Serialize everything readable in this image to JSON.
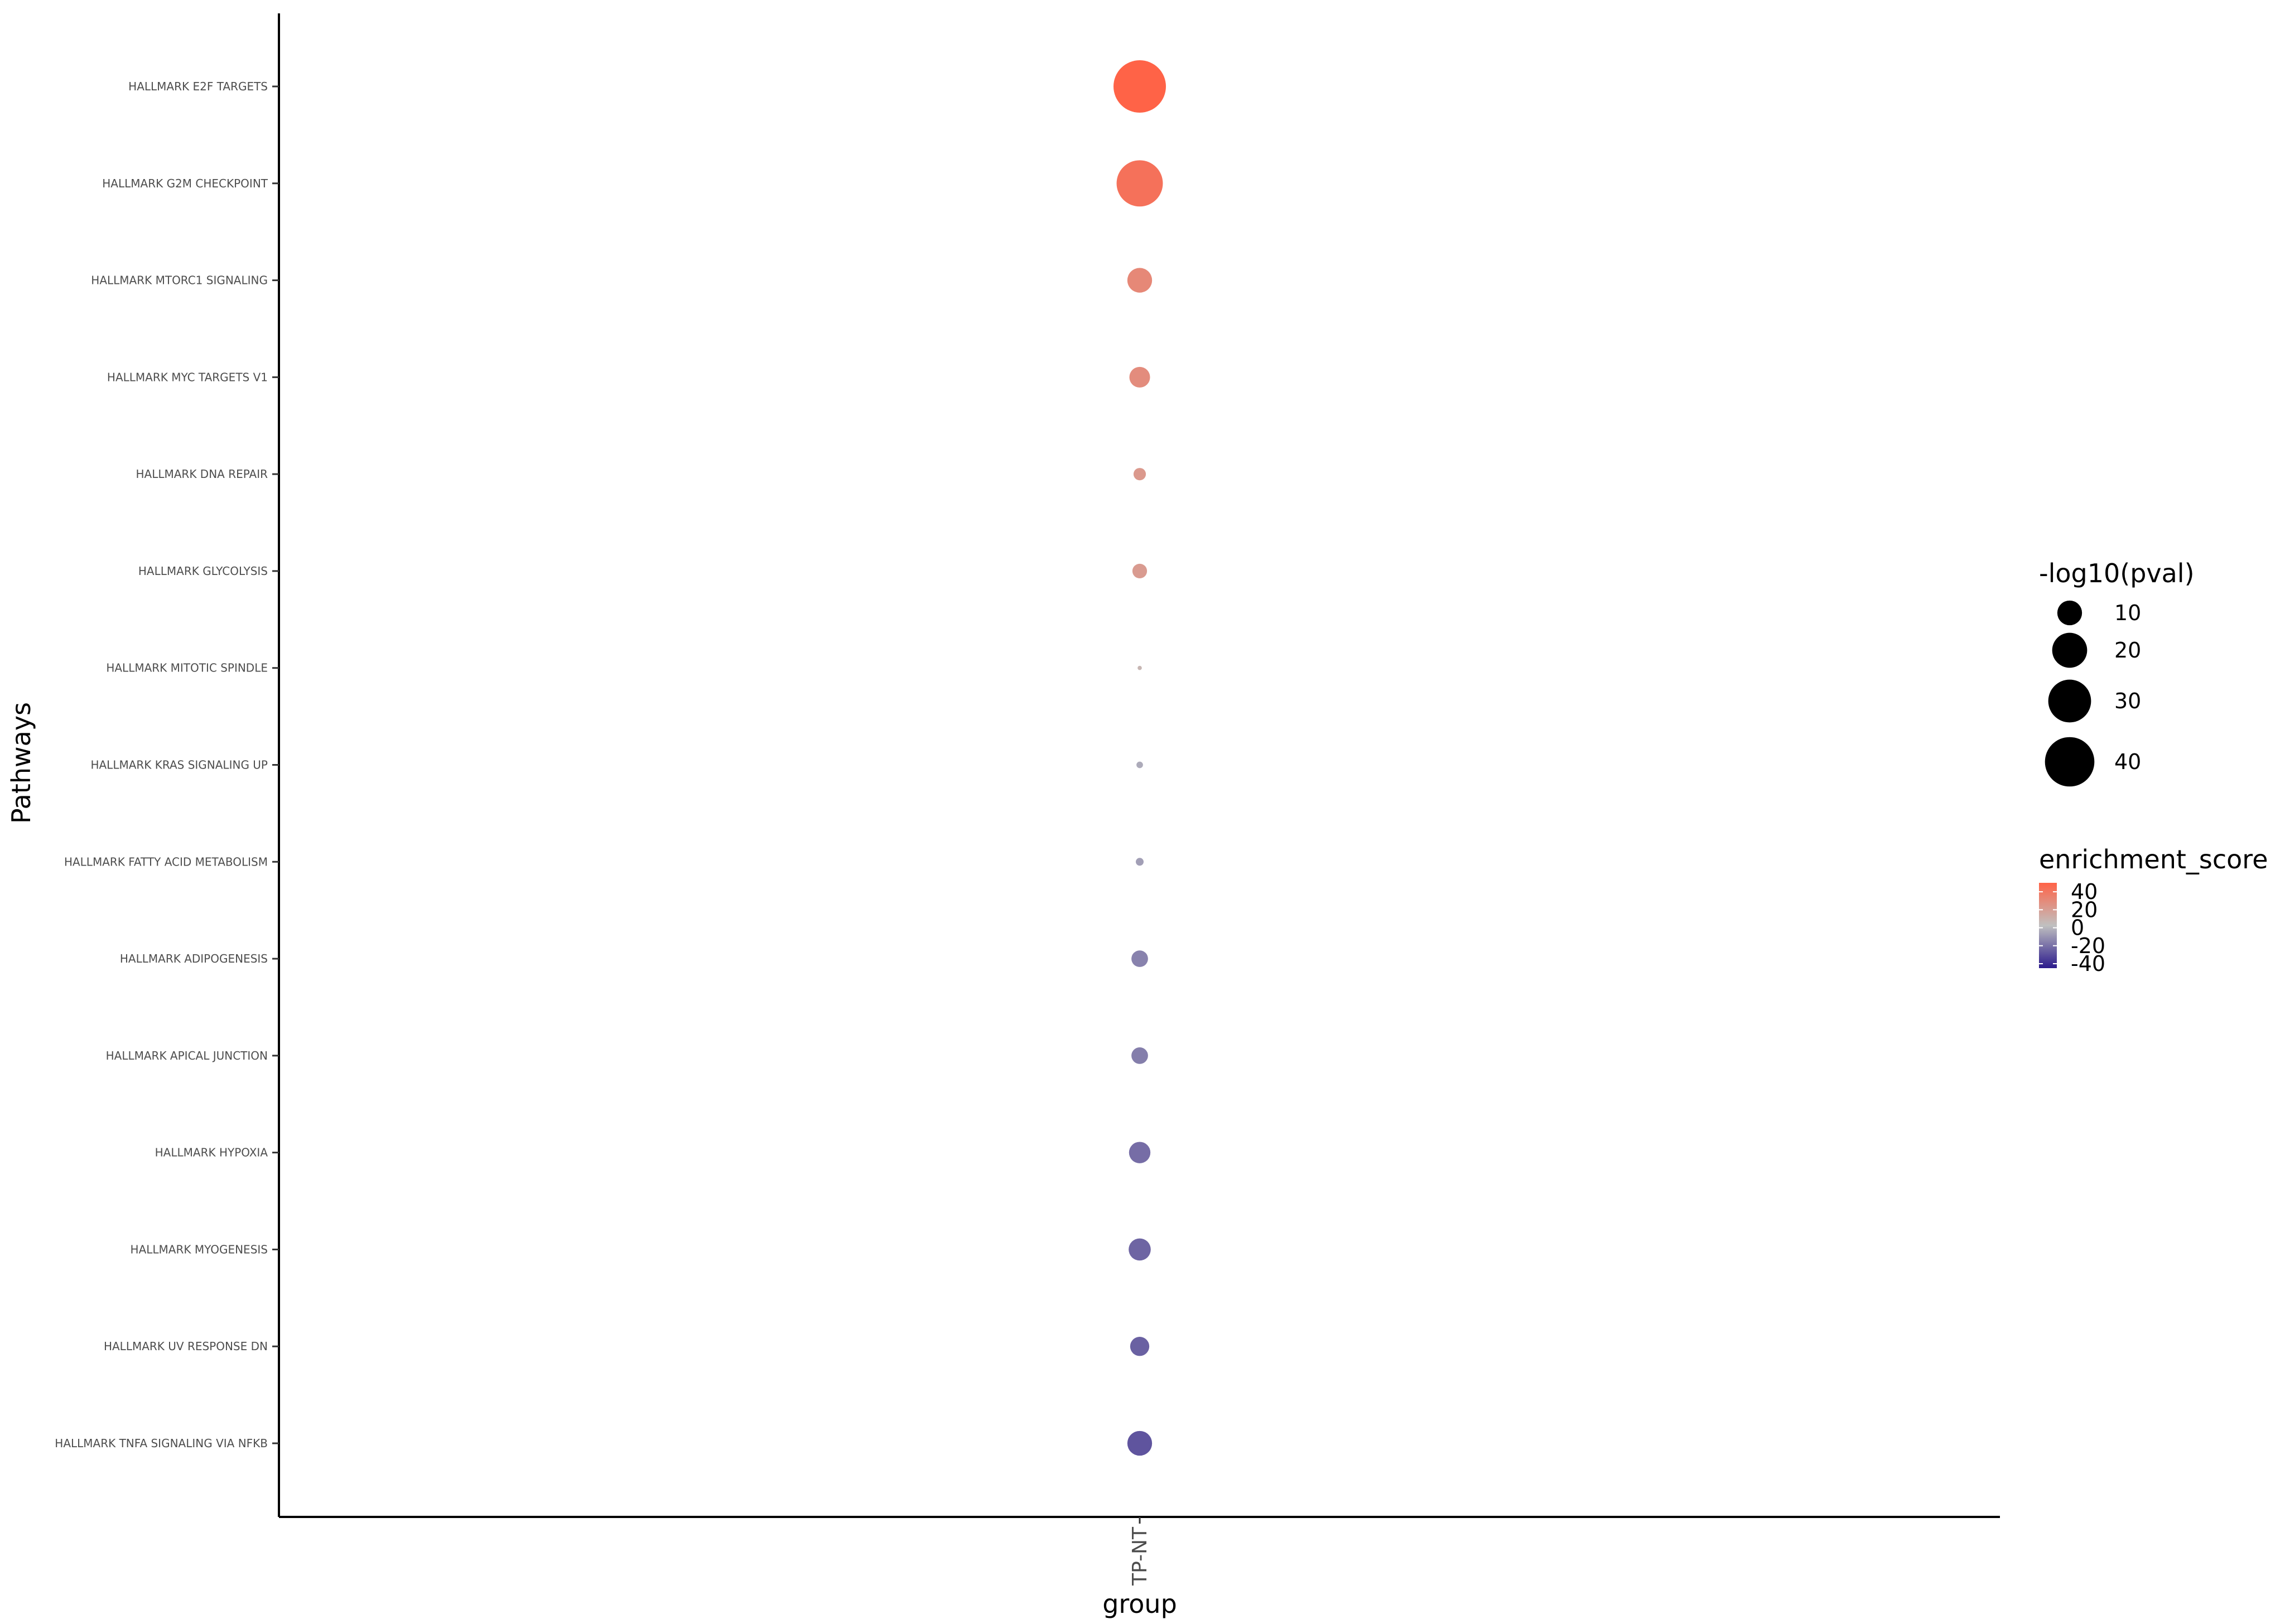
{
  "chart_data": {
    "type": "scatter",
    "title": "",
    "xlabel": "group",
    "ylabel": "Pathways",
    "x_categories": [
      "TP-NT"
    ],
    "y_categories": [
      "HALLMARK E2F TARGETS",
      "HALLMARK G2M CHECKPOINT",
      "HALLMARK MTORC1 SIGNALING",
      "HALLMARK MYC TARGETS V1",
      "HALLMARK DNA REPAIR",
      "HALLMARK GLYCOLYSIS",
      "HALLMARK MITOTIC SPINDLE",
      "HALLMARK KRAS SIGNALING UP",
      "HALLMARK FATTY ACID METABOLISM",
      "HALLMARK ADIPOGENESIS",
      "HALLMARK APICAL JUNCTION",
      "HALLMARK HYPOXIA",
      "HALLMARK MYOGENESIS",
      "HALLMARK UV RESPONSE DN",
      "HALLMARK TNFA SIGNALING VIA NFKB"
    ],
    "points": [
      {
        "group": "TP-NT",
        "pathway": "HALLMARK E2F TARGETS",
        "neg_log10_pval": 45,
        "enrichment_score": 45
      },
      {
        "group": "TP-NT",
        "pathway": "HALLMARK G2M CHECKPOINT",
        "neg_log10_pval": 35,
        "enrichment_score": 38
      },
      {
        "group": "TP-NT",
        "pathway": "HALLMARK MTORC1 SIGNALING",
        "neg_log10_pval": 10,
        "enrichment_score": 27
      },
      {
        "group": "TP-NT",
        "pathway": "HALLMARK MYC TARGETS V1",
        "neg_log10_pval": 7,
        "enrichment_score": 25
      },
      {
        "group": "TP-NT",
        "pathway": "HALLMARK DNA REPAIR",
        "neg_log10_pval": 2.5,
        "enrichment_score": 19
      },
      {
        "group": "TP-NT",
        "pathway": "HALLMARK GLYCOLYSIS",
        "neg_log10_pval": 3.5,
        "enrichment_score": 18
      },
      {
        "group": "TP-NT",
        "pathway": "HALLMARK MITOTIC SPINDLE",
        "neg_log10_pval": 0.3,
        "enrichment_score": 5
      },
      {
        "group": "TP-NT",
        "pathway": "HALLMARK KRAS SIGNALING UP",
        "neg_log10_pval": 0.7,
        "enrichment_score": -5
      },
      {
        "group": "TP-NT",
        "pathway": "HALLMARK FATTY ACID METABOLISM",
        "neg_log10_pval": 1,
        "enrichment_score": -8
      },
      {
        "group": "TP-NT",
        "pathway": "HALLMARK ADIPOGENESIS",
        "neg_log10_pval": 4.5,
        "enrichment_score": -15
      },
      {
        "group": "TP-NT",
        "pathway": "HALLMARK APICAL JUNCTION",
        "neg_log10_pval": 4.5,
        "enrichment_score": -16
      },
      {
        "group": "TP-NT",
        "pathway": "HALLMARK HYPOXIA",
        "neg_log10_pval": 7.5,
        "enrichment_score": -20
      },
      {
        "group": "TP-NT",
        "pathway": "HALLMARK MYOGENESIS",
        "neg_log10_pval": 8,
        "enrichment_score": -22
      },
      {
        "group": "TP-NT",
        "pathway": "HALLMARK UV RESPONSE DN",
        "neg_log10_pval": 6,
        "enrichment_score": -23
      },
      {
        "group": "TP-NT",
        "pathway": "HALLMARK TNFA SIGNALING VIA NFKB",
        "neg_log10_pval": 10,
        "enrichment_score": -26
      }
    ],
    "size_legend": {
      "title": "-log10(pval)",
      "values": [
        10,
        20,
        30,
        40
      ],
      "labels": [
        "10",
        "20",
        "30",
        "40"
      ]
    },
    "color_legend": {
      "title": "enrichment_score",
      "labels": [
        "40",
        "20",
        "0",
        "-20",
        "-40"
      ],
      "range": [
        -40,
        45
      ],
      "low_color": "#2b1a8c",
      "mid_color": "#c0c0c0",
      "high_color": "#ff6347"
    },
    "grid": false,
    "legend_position": "right"
  }
}
